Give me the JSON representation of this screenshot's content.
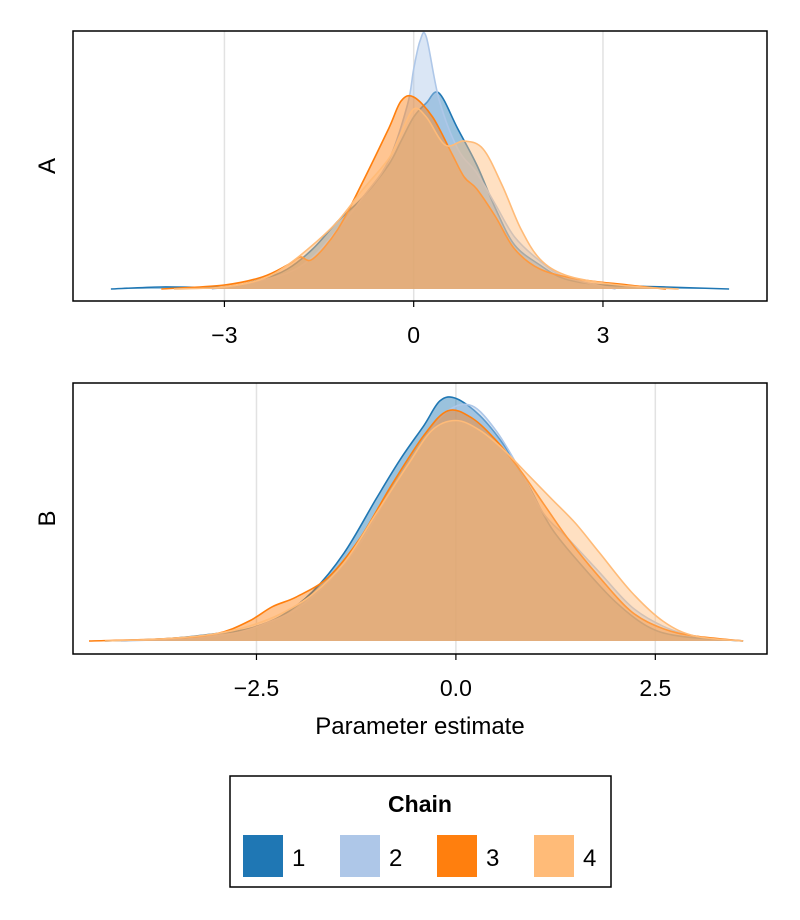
{
  "chart_data": [
    {
      "type": "area",
      "panel": "A",
      "ylabel": "A",
      "xlabel": "",
      "xlim": [
        -5.4,
        5.6
      ],
      "xticks": [
        -3,
        0,
        3
      ],
      "xtick_labels": [
        "−3",
        "0",
        "3"
      ],
      "grid": "vertical",
      "series": [
        {
          "name": "1",
          "x": [
            -4.8,
            -4.0,
            -3.0,
            -2.4,
            -2.0,
            -1.6,
            -1.2,
            -0.8,
            -0.4,
            -0.2,
            0.0,
            0.2,
            0.4,
            0.7,
            1.0,
            1.3,
            1.6,
            2.0,
            2.4,
            3.0,
            4.0,
            5.0
          ],
          "y": [
            0.0,
            0.01,
            0.01,
            0.05,
            0.1,
            0.2,
            0.34,
            0.46,
            0.62,
            0.74,
            0.86,
            0.93,
            0.98,
            0.8,
            0.62,
            0.4,
            0.22,
            0.12,
            0.05,
            0.02,
            0.01,
            0.0
          ]
        },
        {
          "name": "2",
          "x": [
            -3.2,
            -2.6,
            -2.0,
            -1.6,
            -1.2,
            -0.8,
            -0.4,
            -0.1,
            0.0,
            0.1,
            0.2,
            0.4,
            0.7,
            1.0,
            1.3,
            1.6,
            2.0,
            2.4,
            3.2
          ],
          "y": [
            0.0,
            0.03,
            0.08,
            0.16,
            0.3,
            0.46,
            0.64,
            0.92,
            1.1,
            1.24,
            1.26,
            0.95,
            0.7,
            0.58,
            0.42,
            0.26,
            0.14,
            0.06,
            0.0
          ]
        },
        {
          "name": "3",
          "x": [
            -4.0,
            -3.0,
            -2.4,
            -2.0,
            -1.8,
            -1.6,
            -1.2,
            -0.8,
            -0.4,
            -0.2,
            0.0,
            0.3,
            0.6,
            0.8,
            1.0,
            1.3,
            1.6,
            2.0,
            2.6,
            3.4,
            4.0
          ],
          "y": [
            0.0,
            0.02,
            0.06,
            0.12,
            0.16,
            0.15,
            0.3,
            0.54,
            0.8,
            0.94,
            0.96,
            0.86,
            0.68,
            0.56,
            0.5,
            0.36,
            0.2,
            0.1,
            0.05,
            0.02,
            0.0
          ]
        },
        {
          "name": "4",
          "x": [
            -3.8,
            -3.0,
            -2.4,
            -2.0,
            -1.6,
            -1.2,
            -0.8,
            -0.4,
            -0.2,
            0.0,
            0.2,
            0.5,
            0.8,
            1.1,
            1.4,
            1.7,
            2.0,
            2.4,
            3.0,
            3.6,
            4.2
          ],
          "y": [
            0.0,
            0.01,
            0.05,
            0.12,
            0.22,
            0.34,
            0.5,
            0.65,
            0.78,
            0.9,
            0.86,
            0.72,
            0.74,
            0.7,
            0.52,
            0.3,
            0.15,
            0.07,
            0.03,
            0.01,
            0.0
          ]
        }
      ]
    },
    {
      "type": "area",
      "panel": "B",
      "ylabel": "B",
      "xlabel": "Parameter estimate",
      "xlim": [
        -4.8,
        3.9
      ],
      "xticks": [
        -2.5,
        0.0,
        2.5
      ],
      "xtick_labels": [
        "−2.5",
        "0.0",
        "2.5"
      ],
      "grid": "vertical",
      "series": [
        {
          "name": "1",
          "x": [
            -4.4,
            -3.6,
            -3.0,
            -2.6,
            -2.2,
            -1.8,
            -1.4,
            -1.0,
            -0.7,
            -0.4,
            -0.2,
            0.0,
            0.3,
            0.6,
            0.9,
            1.2,
            1.6,
            2.0,
            2.4,
            2.8,
            3.6
          ],
          "y": [
            0.0,
            0.01,
            0.03,
            0.05,
            0.1,
            0.2,
            0.36,
            0.58,
            0.74,
            0.88,
            0.98,
            0.99,
            0.92,
            0.8,
            0.64,
            0.46,
            0.3,
            0.16,
            0.06,
            0.02,
            0.0
          ]
        },
        {
          "name": "2",
          "x": [
            -4.2,
            -3.4,
            -2.8,
            -2.4,
            -2.0,
            -1.6,
            -1.2,
            -0.8,
            -0.4,
            -0.1,
            0.2,
            0.5,
            0.8,
            1.1,
            1.4,
            1.8,
            2.2,
            2.6,
            3.0,
            3.6
          ],
          "y": [
            0.0,
            0.01,
            0.03,
            0.07,
            0.13,
            0.24,
            0.4,
            0.62,
            0.82,
            0.94,
            0.96,
            0.86,
            0.7,
            0.52,
            0.42,
            0.28,
            0.14,
            0.06,
            0.02,
            0.0
          ]
        },
        {
          "name": "3",
          "x": [
            -4.6,
            -3.6,
            -3.0,
            -2.6,
            -2.3,
            -2.0,
            -1.6,
            -1.2,
            -0.8,
            -0.4,
            -0.1,
            0.2,
            0.5,
            0.8,
            1.1,
            1.4,
            1.8,
            2.2,
            2.6,
            3.0,
            3.6
          ],
          "y": [
            0.0,
            0.01,
            0.03,
            0.08,
            0.14,
            0.18,
            0.26,
            0.42,
            0.64,
            0.84,
            0.94,
            0.91,
            0.82,
            0.7,
            0.56,
            0.42,
            0.26,
            0.12,
            0.05,
            0.02,
            0.0
          ]
        },
        {
          "name": "4",
          "x": [
            -4.4,
            -3.6,
            -3.0,
            -2.6,
            -2.2,
            -1.8,
            -1.4,
            -1.0,
            -0.6,
            -0.3,
            0.0,
            0.3,
            0.6,
            0.9,
            1.2,
            1.5,
            1.8,
            2.2,
            2.6,
            3.0,
            3.6
          ],
          "y": [
            0.0,
            0.01,
            0.03,
            0.06,
            0.11,
            0.19,
            0.32,
            0.52,
            0.72,
            0.86,
            0.9,
            0.86,
            0.78,
            0.68,
            0.58,
            0.48,
            0.36,
            0.2,
            0.08,
            0.02,
            0.0
          ]
        }
      ]
    }
  ],
  "legend": {
    "title": "Chain",
    "placement": "bottom-center",
    "entries": [
      {
        "label": "1",
        "color": "#1f77b4"
      },
      {
        "label": "2",
        "color": "#aec7e8"
      },
      {
        "label": "3",
        "color": "#ff7f0e"
      },
      {
        "label": "4",
        "color": "#ffbb78"
      }
    ]
  },
  "colors": {
    "series_fill": [
      "#1f77b4",
      "#aec7e8",
      "#ff7f0e",
      "#ffbb78"
    ],
    "fill_opacity": 0.45,
    "grid": "#e2e2e2",
    "frame": "#000000"
  }
}
